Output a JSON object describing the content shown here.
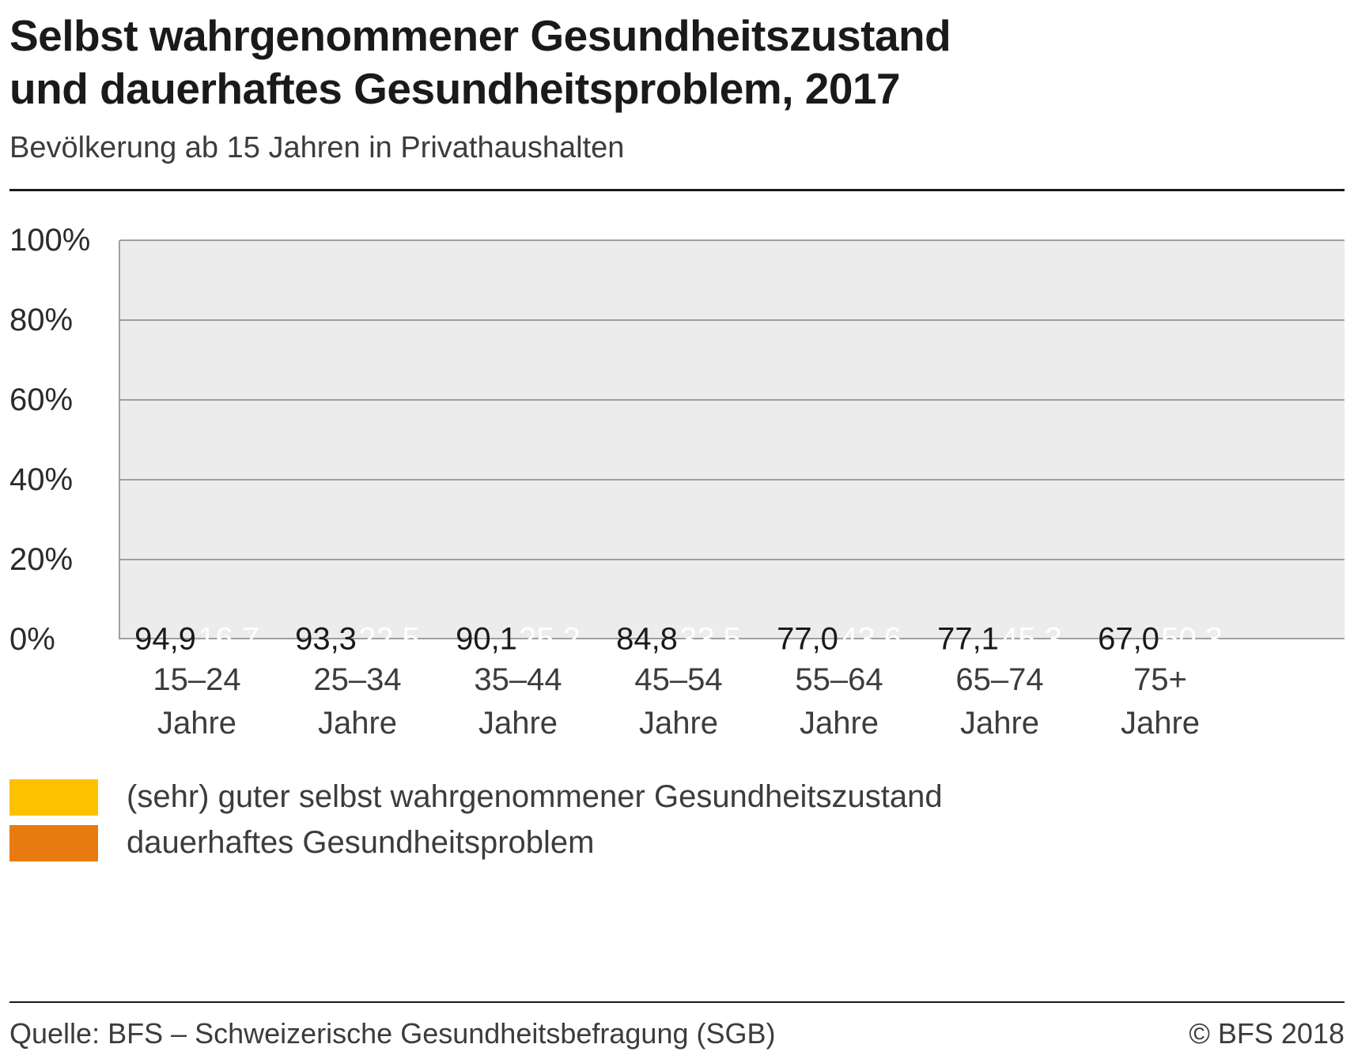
{
  "header": {
    "title_line1": "Selbst wahrgenommener Gesundheitszustand",
    "title_line2": "und dauerhaftes Gesundheitsproblem, 2017",
    "subtitle": "Bevölkerung ab 15 Jahren in Privathaushalten"
  },
  "chart_data": {
    "type": "bar",
    "categories": [
      "15–24",
      "25–34",
      "35–44",
      "45–54",
      "55–64",
      "65–74",
      "75+"
    ],
    "category_suffix": "Jahre",
    "series": [
      {
        "name": "(sehr) guter selbst wahrgenommener Gesundheitszustand",
        "values": [
          94.9,
          93.3,
          90.1,
          84.8,
          77.0,
          77.1,
          67.0
        ],
        "labels": [
          "94,9",
          "93,3",
          "90,1",
          "84,8",
          "77,0",
          "77,1",
          "67,0"
        ],
        "color": "#fcc200",
        "label_color": "#1a1a1a"
      },
      {
        "name": "dauerhaftes Gesundheitsproblem",
        "values": [
          16.7,
          22.5,
          25.2,
          33.5,
          43.6,
          45.3,
          50.3
        ],
        "labels": [
          "16,7",
          "22,5",
          "25,2",
          "33,5",
          "43,6",
          "45,3",
          "50,3"
        ],
        "color": "#e87b10",
        "label_color": "#ffffff"
      }
    ],
    "ylim": [
      0,
      100
    ],
    "yticks": [
      0,
      20,
      40,
      60,
      80,
      100
    ],
    "ytick_suffix": "%",
    "grid": true,
    "legend_position": "bottom"
  },
  "footer": {
    "source": "Quelle: BFS – Schweizerische Gesundheitsbefragung (SGB)",
    "copyright": "© BFS 2018"
  }
}
